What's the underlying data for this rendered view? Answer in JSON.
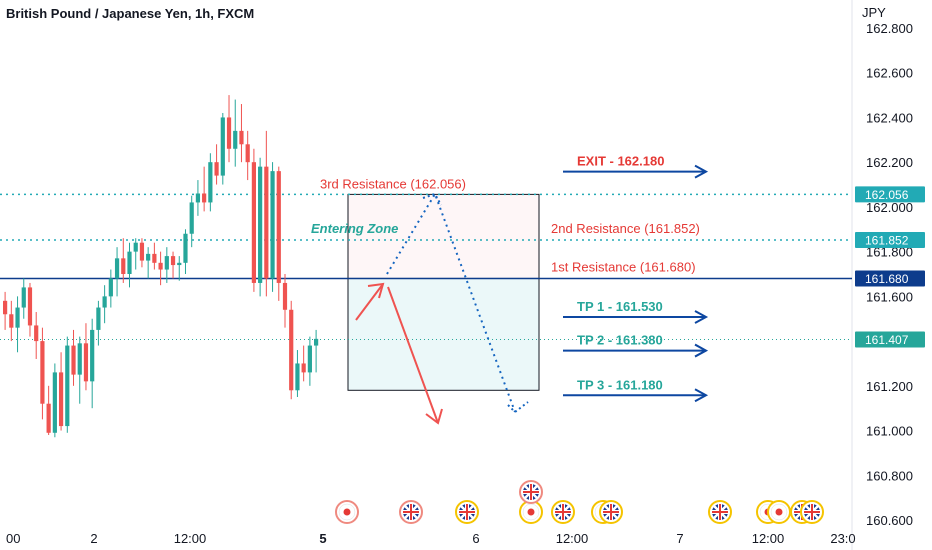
{
  "chart_data": {
    "type": "candlestick",
    "title": "British Pound / Japanese Yen, 1h, FXCM",
    "currency_label": "JPY",
    "y_ticks": [
      "162.800",
      "162.600",
      "162.400",
      "162.200",
      "162.000",
      "161.800",
      "161.600",
      "161.400",
      "161.200",
      "161.000",
      "160.800",
      "160.600"
    ],
    "y_tick_values": [
      162.8,
      162.6,
      162.4,
      162.2,
      162.0,
      161.8,
      161.6,
      161.4,
      161.2,
      161.0,
      160.8,
      160.6
    ],
    "ylim": [
      160.58,
      162.86
    ],
    "x_ticks": [
      {
        "label": "00",
        "bold": false
      },
      {
        "label": "2",
        "bold": false
      },
      {
        "label": "12:00",
        "bold": false
      },
      {
        "label": "5",
        "bold": true
      },
      {
        "label": "6",
        "bold": false
      },
      {
        "label": "12:00",
        "bold": false
      },
      {
        "label": "7",
        "bold": false
      },
      {
        "label": "12:00",
        "bold": false
      },
      {
        "label": "23:0",
        "bold": false
      }
    ],
    "candles": [
      {
        "o": 161.58,
        "h": 161.62,
        "l": 161.45,
        "c": 161.52
      },
      {
        "o": 161.52,
        "h": 161.58,
        "l": 161.4,
        "c": 161.46
      },
      {
        "o": 161.46,
        "h": 161.6,
        "l": 161.35,
        "c": 161.55
      },
      {
        "o": 161.55,
        "h": 161.68,
        "l": 161.5,
        "c": 161.64
      },
      {
        "o": 161.64,
        "h": 161.66,
        "l": 161.42,
        "c": 161.47
      },
      {
        "o": 161.47,
        "h": 161.53,
        "l": 161.32,
        "c": 161.4
      },
      {
        "o": 161.4,
        "h": 161.46,
        "l": 161.05,
        "c": 161.12
      },
      {
        "o": 161.12,
        "h": 161.2,
        "l": 160.98,
        "c": 160.99
      },
      {
        "o": 160.99,
        "h": 161.3,
        "l": 160.97,
        "c": 161.26
      },
      {
        "o": 161.26,
        "h": 161.35,
        "l": 161.0,
        "c": 161.02
      },
      {
        "o": 161.02,
        "h": 161.42,
        "l": 160.99,
        "c": 161.38
      },
      {
        "o": 161.38,
        "h": 161.45,
        "l": 161.2,
        "c": 161.25
      },
      {
        "o": 161.25,
        "h": 161.42,
        "l": 161.12,
        "c": 161.39
      },
      {
        "o": 161.39,
        "h": 161.48,
        "l": 161.18,
        "c": 161.22
      },
      {
        "o": 161.22,
        "h": 161.5,
        "l": 161.1,
        "c": 161.45
      },
      {
        "o": 161.45,
        "h": 161.58,
        "l": 161.38,
        "c": 161.55
      },
      {
        "o": 161.55,
        "h": 161.65,
        "l": 161.48,
        "c": 161.6
      },
      {
        "o": 161.6,
        "h": 161.72,
        "l": 161.55,
        "c": 161.68
      },
      {
        "o": 161.68,
        "h": 161.82,
        "l": 161.6,
        "c": 161.77
      },
      {
        "o": 161.77,
        "h": 161.86,
        "l": 161.66,
        "c": 161.7
      },
      {
        "o": 161.7,
        "h": 161.84,
        "l": 161.64,
        "c": 161.8
      },
      {
        "o": 161.8,
        "h": 161.86,
        "l": 161.72,
        "c": 161.84
      },
      {
        "o": 161.84,
        "h": 161.86,
        "l": 161.73,
        "c": 161.76
      },
      {
        "o": 161.76,
        "h": 161.82,
        "l": 161.68,
        "c": 161.79
      },
      {
        "o": 161.79,
        "h": 161.84,
        "l": 161.72,
        "c": 161.75
      },
      {
        "o": 161.75,
        "h": 161.8,
        "l": 161.65,
        "c": 161.72
      },
      {
        "o": 161.72,
        "h": 161.82,
        "l": 161.66,
        "c": 161.78
      },
      {
        "o": 161.78,
        "h": 161.8,
        "l": 161.68,
        "c": 161.74
      },
      {
        "o": 161.74,
        "h": 161.78,
        "l": 161.67,
        "c": 161.75
      },
      {
        "o": 161.75,
        "h": 161.9,
        "l": 161.7,
        "c": 161.88
      },
      {
        "o": 161.88,
        "h": 162.05,
        "l": 161.82,
        "c": 162.02
      },
      {
        "o": 162.02,
        "h": 162.12,
        "l": 161.96,
        "c": 162.06
      },
      {
        "o": 162.06,
        "h": 162.18,
        "l": 161.98,
        "c": 162.02
      },
      {
        "o": 162.02,
        "h": 162.24,
        "l": 161.98,
        "c": 162.2
      },
      {
        "o": 162.2,
        "h": 162.28,
        "l": 162.1,
        "c": 162.14
      },
      {
        "o": 162.14,
        "h": 162.42,
        "l": 162.1,
        "c": 162.4
      },
      {
        "o": 162.4,
        "h": 162.5,
        "l": 162.2,
        "c": 162.26
      },
      {
        "o": 162.26,
        "h": 162.48,
        "l": 162.18,
        "c": 162.34
      },
      {
        "o": 162.34,
        "h": 162.46,
        "l": 162.2,
        "c": 162.28
      },
      {
        "o": 162.28,
        "h": 162.34,
        "l": 162.12,
        "c": 162.2
      },
      {
        "o": 162.2,
        "h": 162.26,
        "l": 161.62,
        "c": 161.66
      },
      {
        "o": 161.66,
        "h": 162.22,
        "l": 161.6,
        "c": 162.18
      },
      {
        "o": 162.18,
        "h": 162.34,
        "l": 161.6,
        "c": 161.68
      },
      {
        "o": 161.68,
        "h": 162.2,
        "l": 161.62,
        "c": 162.16
      },
      {
        "o": 162.16,
        "h": 162.18,
        "l": 161.58,
        "c": 161.66
      },
      {
        "o": 161.66,
        "h": 161.7,
        "l": 161.46,
        "c": 161.54
      },
      {
        "o": 161.54,
        "h": 161.58,
        "l": 161.14,
        "c": 161.18
      },
      {
        "o": 161.18,
        "h": 161.36,
        "l": 161.15,
        "c": 161.3
      },
      {
        "o": 161.3,
        "h": 161.38,
        "l": 161.22,
        "c": 161.26
      },
      {
        "o": 161.26,
        "h": 161.42,
        "l": 161.2,
        "c": 161.38
      },
      {
        "o": 161.38,
        "h": 161.45,
        "l": 161.26,
        "c": 161.41
      }
    ],
    "levels": [
      {
        "name": "3rd Resistance",
        "value": 162.056,
        "tag": "162.056",
        "style": "dotted",
        "color": "#22aab5",
        "tag_bg": "#22aab5"
      },
      {
        "name": "2nd Resistance",
        "value": 161.852,
        "tag": "161.852",
        "style": "dotted",
        "color": "#22aab5",
        "tag_bg": "#22aab5"
      },
      {
        "name": "1st Resistance",
        "value": 161.68,
        "tag": "161.680",
        "style": "solid",
        "color": "#0d3c8c",
        "tag_bg": "#0d3c8c"
      },
      {
        "name": "last",
        "value": 161.407,
        "tag": "161.407",
        "style": "dotted-thin",
        "color": "#26a69a",
        "tag_bg": "#26a69a"
      }
    ],
    "annotations": {
      "resistance_3": "3rd Resistance (162.056)",
      "resistance_2": "2nd Resistance (161.852)",
      "resistance_1": "1st Resistance (161.680)",
      "entering_zone": "Entering Zone",
      "exit": "EXIT - 162.180",
      "tp1": "TP 1 - 161.530",
      "tp2": "TP 2 - 161.380",
      "tp3": "TP 3 - 161.180"
    },
    "target_levels": {
      "exit": 162.18,
      "tp1": 161.53,
      "tp2": 161.38,
      "tp3": 161.18
    },
    "box": {
      "top": 162.056,
      "mid": 161.68,
      "bottom": 161.18
    },
    "colors": {
      "up": "#26a69a",
      "down": "#ef5350",
      "text_red": "#e53935",
      "text_teal": "#26a69a",
      "arrow_blue": "#0d47a1",
      "dotted_blue": "#1565c0"
    },
    "events": [
      {
        "type": "jp"
      },
      {
        "type": "gb"
      },
      {
        "type": "gb"
      },
      {
        "type": "jp"
      },
      {
        "type": "gb"
      },
      {
        "type": "jp"
      },
      {
        "type": "gb"
      },
      {
        "type": "gb"
      },
      {
        "type": "jp"
      },
      {
        "type": "jp"
      },
      {
        "type": "gb"
      },
      {
        "type": "gb"
      },
      {
        "type": "gb"
      }
    ]
  }
}
